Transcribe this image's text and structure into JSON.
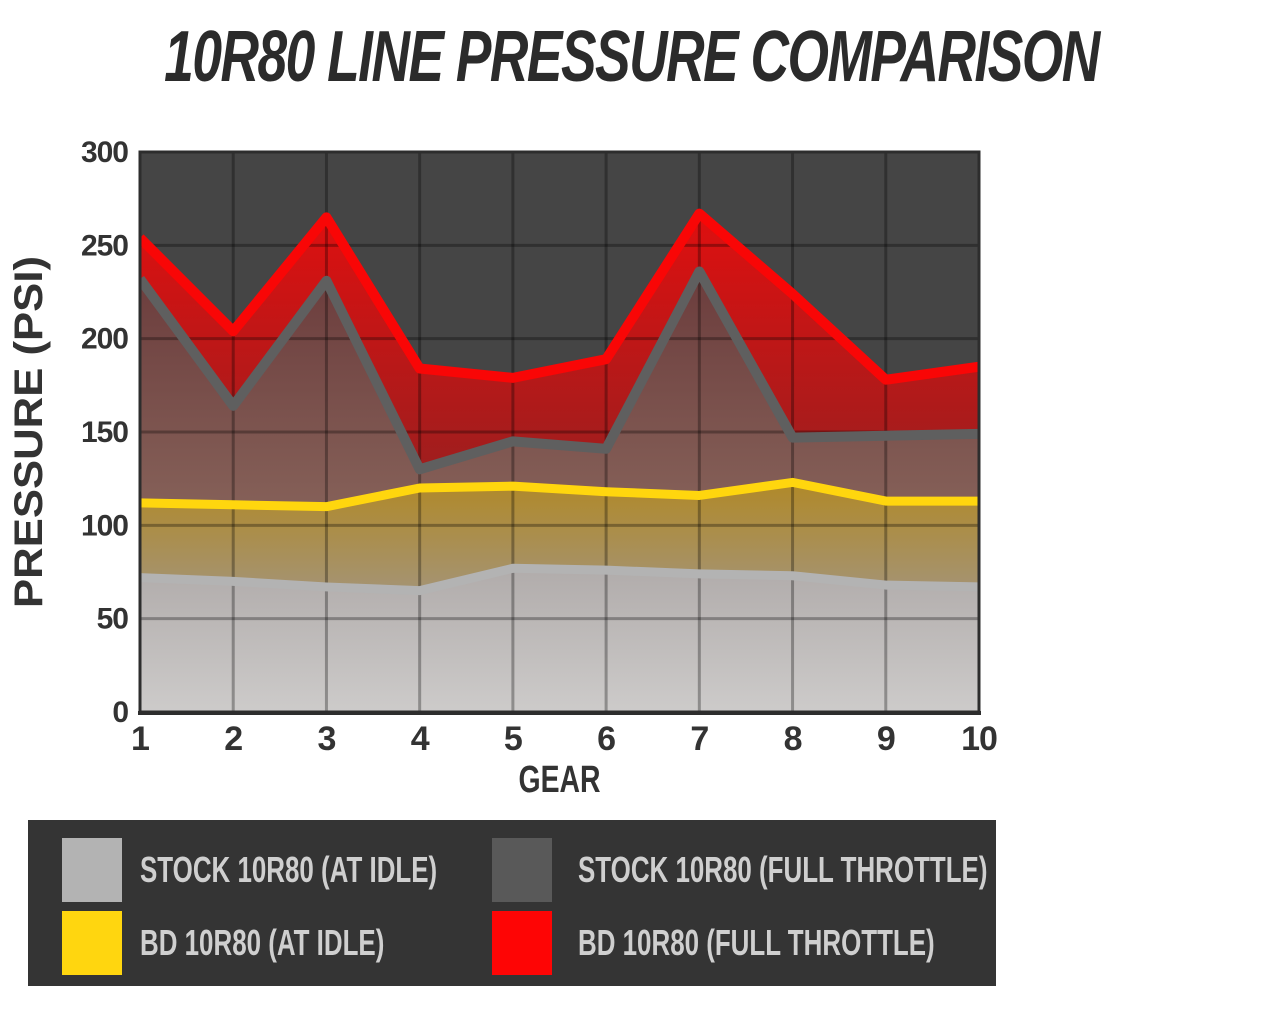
{
  "title": "10R80 LINE PRESSURE COMPARISON",
  "colors": {
    "page_bg": "#ffffff",
    "chart_bg": "#454545",
    "plot_border": "#2d2d2d",
    "gridline": "rgba(0,0,0,0.3)",
    "axis_label": "#333333",
    "legend_bg": "#343434",
    "legend_text": "#cfcfcf",
    "title_text": "#2b2b2b"
  },
  "chart_data": {
    "type": "area",
    "title": "10R80 LINE PRESSURE COMPARISON",
    "xlabel": "GEAR",
    "ylabel": "PRESSURE (PSI)",
    "x": [
      1,
      2,
      3,
      4,
      5,
      6,
      7,
      8,
      9,
      10
    ],
    "ylim": [
      0,
      300
    ],
    "yticks": [
      0,
      50,
      100,
      150,
      200,
      250,
      300
    ],
    "grid": true,
    "legend_position": "bottom",
    "series": [
      {
        "key": "stock_idle",
        "name": "STOCK 10R80 (AT IDLE)",
        "color": "#b3b3b3",
        "line_width": 9,
        "values": [
          72,
          70,
          67,
          65,
          77,
          76,
          74,
          73,
          68,
          67
        ]
      },
      {
        "key": "bd_idle",
        "name": "BD 10R80 (AT IDLE)",
        "color": "#ffd60e",
        "line_width": 9,
        "values": [
          112,
          111,
          110,
          120,
          121,
          118,
          116,
          123,
          113,
          113
        ]
      },
      {
        "key": "stock_ft",
        "name": "STOCK 10R80 (FULL THROTTLE)",
        "color": "#5f5f5f",
        "line_width": 10,
        "values": [
          232,
          164,
          231,
          130,
          145,
          141,
          236,
          147,
          148,
          149
        ]
      },
      {
        "key": "bd_ft",
        "name": "BD 10R80 (FULL THROTTLE)",
        "color": "#f90606",
        "line_width": 10,
        "values": [
          254,
          204,
          265,
          184,
          179,
          189,
          267,
          224,
          178,
          185
        ]
      }
    ],
    "area_gradients": [
      {
        "id": "gradRed",
        "upper": "bd_ft",
        "lower": "stock_ft",
        "y1": 152,
        "y2": 560,
        "from": "#ee0c0c",
        "to": "#882323"
      },
      {
        "id": "gradMaroon",
        "upper": "stock_ft",
        "lower": "bd_idle",
        "y1": 270,
        "y2": 505,
        "from": "#6b3c3c",
        "to": "#856058"
      },
      {
        "id": "gradOlive",
        "upper": "bd_idle",
        "lower": "stock_idle",
        "y1": 485,
        "y2": 595,
        "from": "#b0892a",
        "to": "#a49476"
      },
      {
        "id": "gradSilver",
        "upper": "stock_idle",
        "lower": null,
        "y1": 565,
        "y2": 712,
        "from": "#b0abaa",
        "to": "#cdcbca"
      }
    ]
  },
  "legend": {
    "items": [
      {
        "label": "STOCK 10R80 (AT IDLE)",
        "color": "#b3b3b3"
      },
      {
        "label": "STOCK 10R80 (FULL THROTTLE)",
        "color": "#595959"
      },
      {
        "label": "BD 10R80 (AT IDLE)",
        "color": "#ffd60f"
      },
      {
        "label": "BD 10R80 (FULL THROTTLE)",
        "color": "#fe0505"
      }
    ]
  }
}
